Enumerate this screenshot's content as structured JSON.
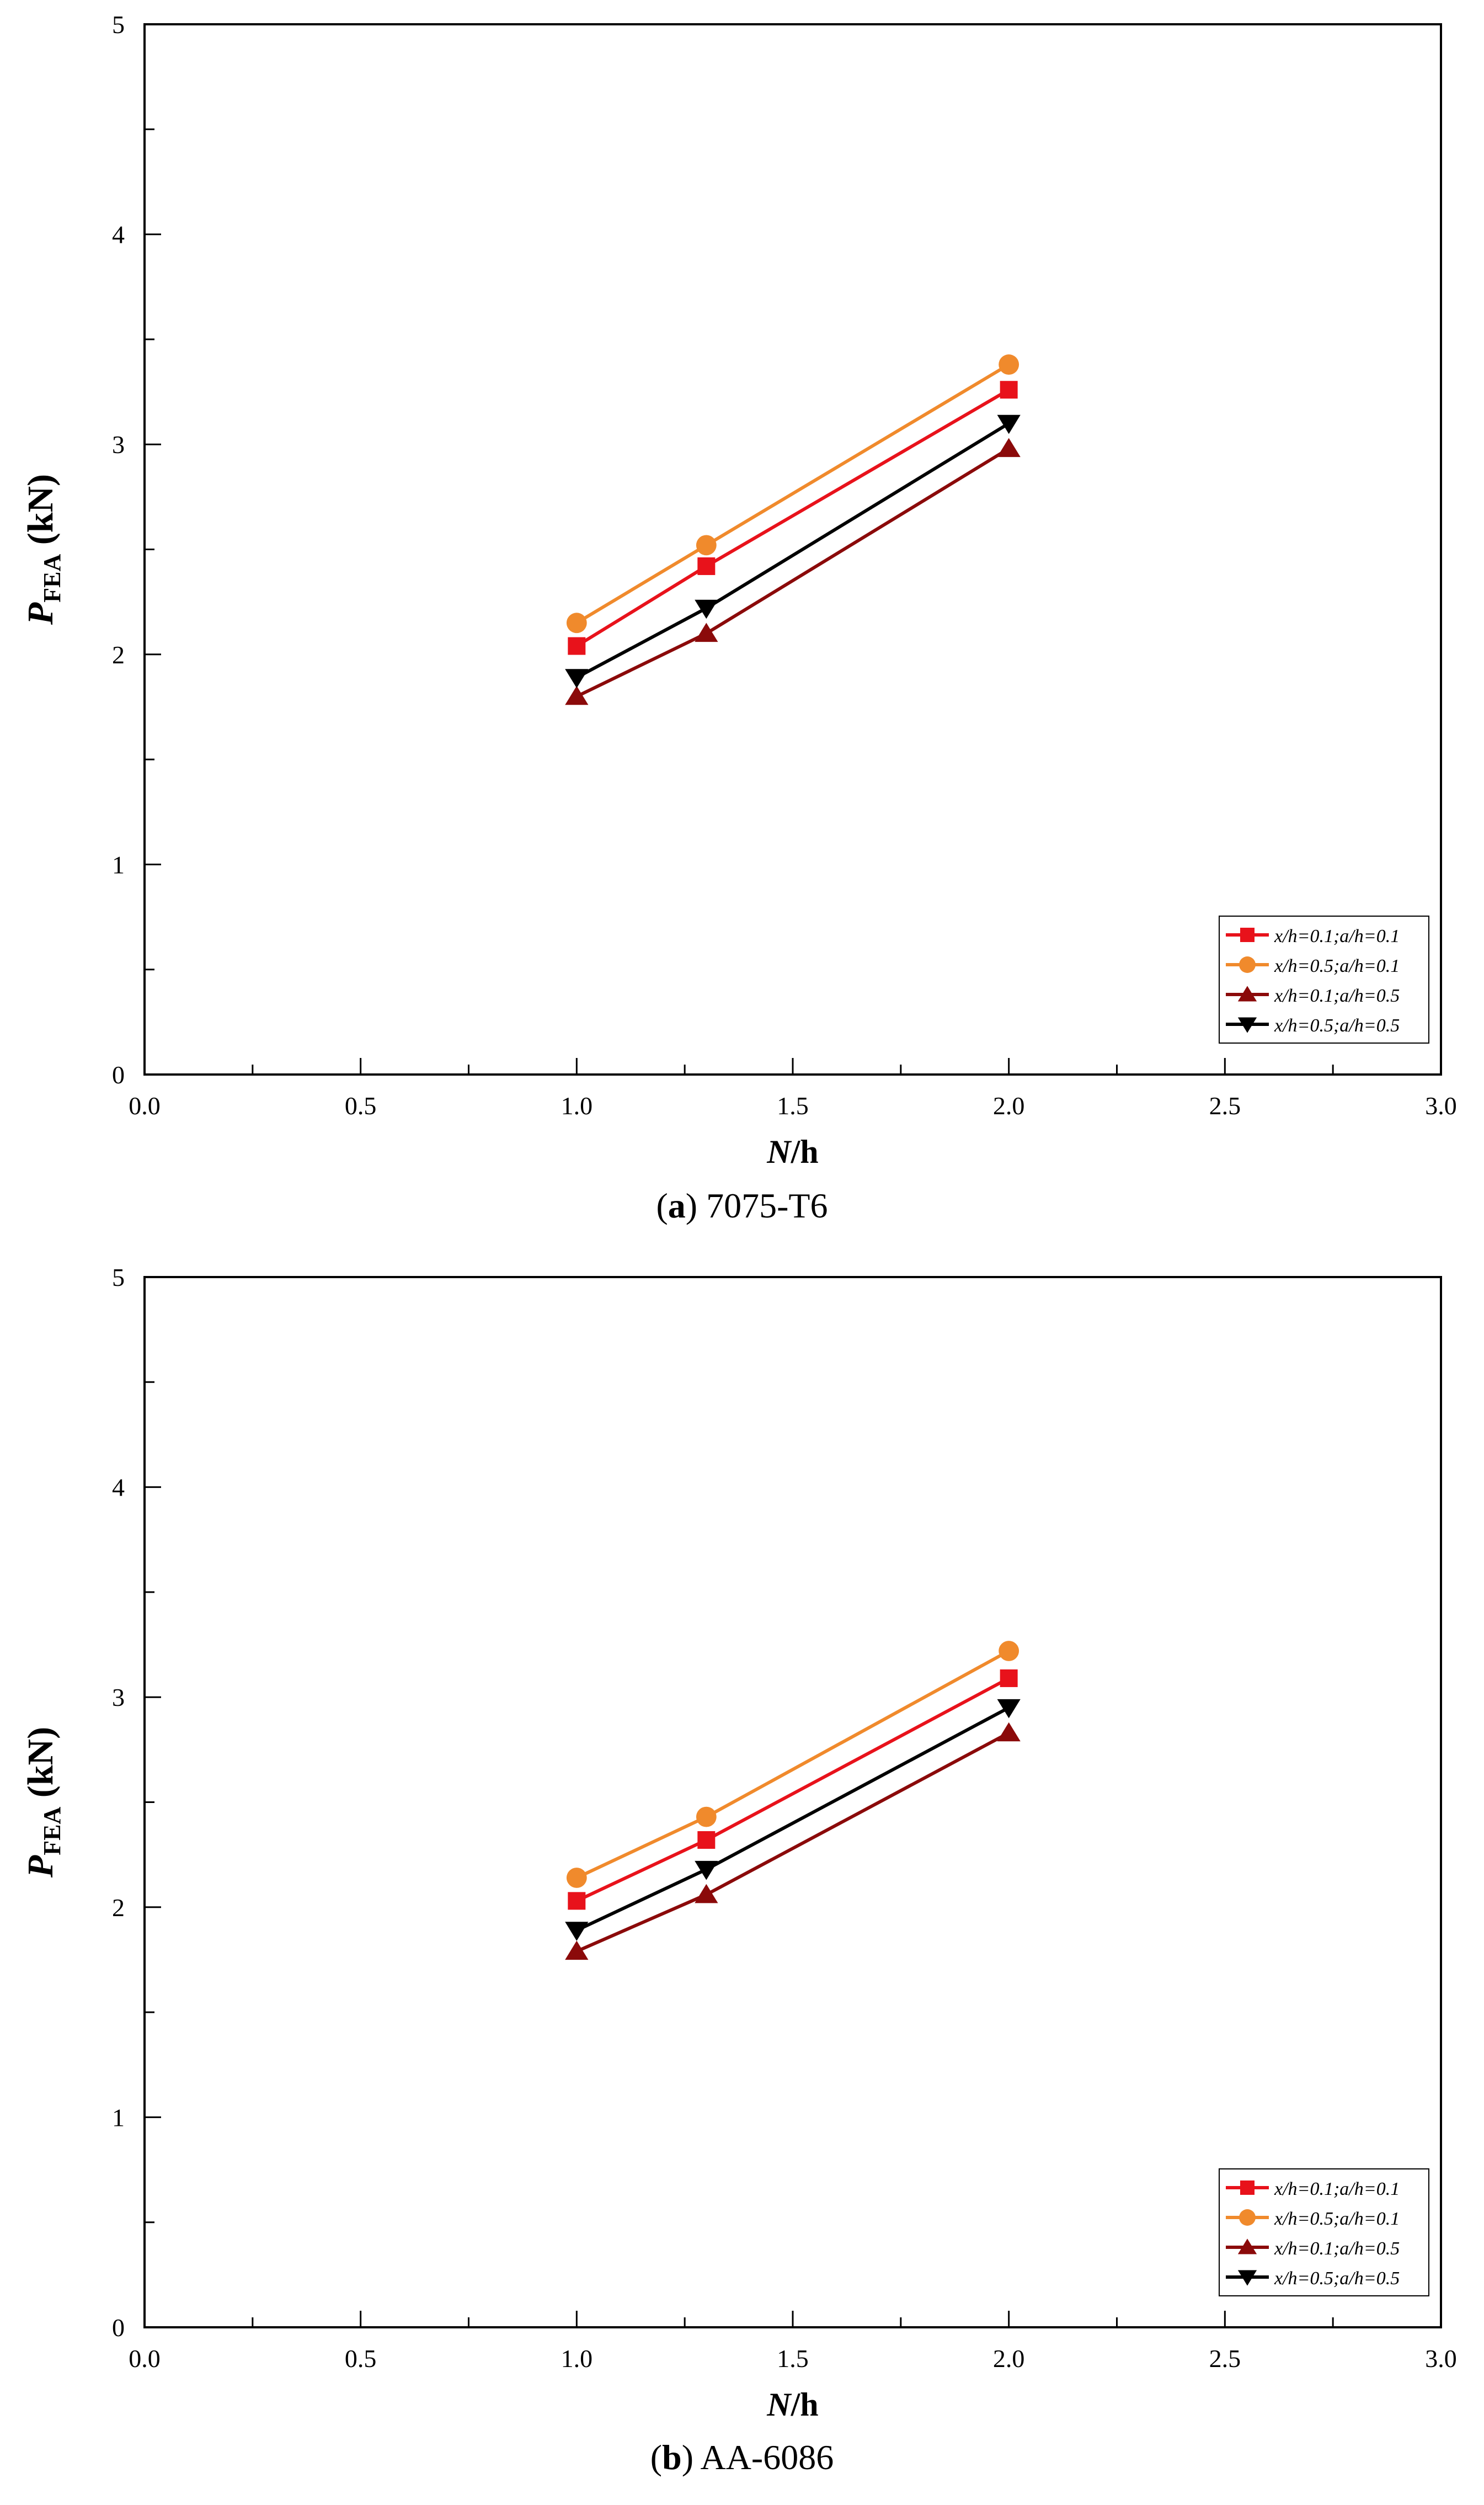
{
  "chart_data": [
    {
      "type": "line",
      "panel_letter": "a",
      "panel_title": "7075-T6",
      "xlabel_italic": "N",
      "xlabel_rest": "/h",
      "ylabel_main": "P",
      "ylabel_sub": "FEA",
      "ylabel_unit": " (kN)",
      "xlim": [
        0,
        3
      ],
      "ylim": [
        0,
        5
      ],
      "x_ticks": [
        "0.0",
        "0.5",
        "1.0",
        "1.5",
        "2.0",
        "2.5",
        "3.0"
      ],
      "y_ticks": [
        "0",
        "1",
        "2",
        "3",
        "4",
        "5"
      ],
      "legend_position": "bottom-right",
      "x": [
        1.0,
        1.3,
        2.0
      ],
      "series": [
        {
          "name": "x/h=0.1;a/h=0.1",
          "color": "#e8121b",
          "marker": "square",
          "values": [
            2.04,
            2.42,
            3.26
          ]
        },
        {
          "name": "x/h=0.5;a/h=0.1",
          "color": "#f08a2c",
          "marker": "circle",
          "values": [
            2.15,
            2.52,
            3.38
          ]
        },
        {
          "name": "x/h=0.1;a/h=0.5",
          "color": "#8b0a0a",
          "marker": "triangle-up",
          "values": [
            1.8,
            2.1,
            2.98
          ]
        },
        {
          "name": "x/h=0.5;a/h=0.5",
          "color": "#000000",
          "marker": "triangle-down",
          "values": [
            1.89,
            2.22,
            3.1
          ]
        }
      ]
    },
    {
      "type": "line",
      "panel_letter": "b",
      "panel_title": "AA-6086",
      "xlabel_italic": "N",
      "xlabel_rest": "/h",
      "ylabel_main": "P",
      "ylabel_sub": "FEA",
      "ylabel_unit": " (kN)",
      "xlim": [
        0,
        3
      ],
      "ylim": [
        0,
        5
      ],
      "x_ticks": [
        "0.0",
        "0.5",
        "1.0",
        "1.5",
        "2.0",
        "2.5",
        "3.0"
      ],
      "y_ticks": [
        "0",
        "1",
        "2",
        "3",
        "4",
        "5"
      ],
      "legend_position": "bottom-right",
      "x": [
        1.0,
        1.3,
        2.0
      ],
      "series": [
        {
          "name": "x/h=0.1;a/h=0.1",
          "color": "#e8121b",
          "marker": "square",
          "values": [
            2.03,
            2.32,
            3.09
          ]
        },
        {
          "name": "x/h=0.5;a/h=0.1",
          "color": "#f08a2c",
          "marker": "circle",
          "values": [
            2.14,
            2.43,
            3.22
          ]
        },
        {
          "name": "x/h=0.1;a/h=0.5",
          "color": "#8b0a0a",
          "marker": "triangle-up",
          "values": [
            1.79,
            2.06,
            2.83
          ]
        },
        {
          "name": "x/h=0.5;a/h=0.5",
          "color": "#000000",
          "marker": "triangle-down",
          "values": [
            1.89,
            2.18,
            2.95
          ]
        }
      ]
    }
  ]
}
